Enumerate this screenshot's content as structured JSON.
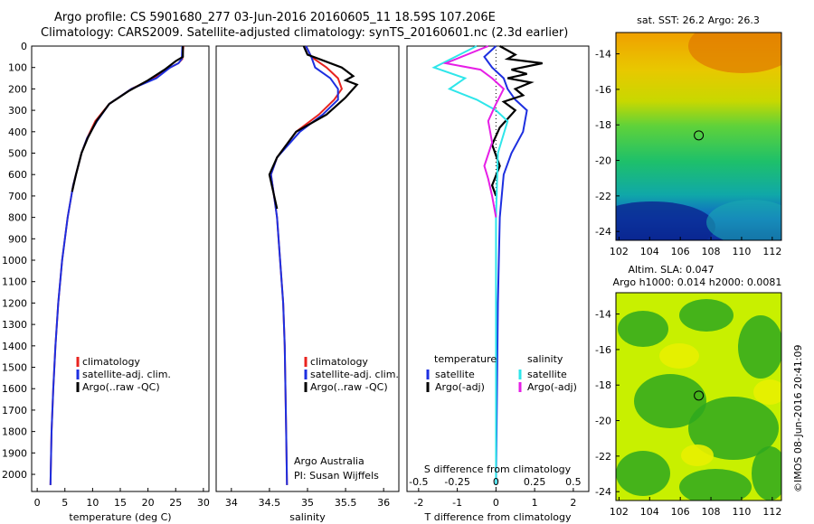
{
  "title": {
    "line1": "Argo profile: CS 5901680_277 03-Jun-2016 20160605_11 18.59S 107.206E",
    "line2": "Climatology: CARS2009. Satellite-adjusted climatology: synTS_20160601.nc (2.3d earlier)"
  },
  "stamp": "©IMOS 08-Jun-2016 20:41:09",
  "colors": {
    "climatology": "#e8231f",
    "satellite": "#1d2fe0",
    "argo": "#000000",
    "satellite_s": "#2ee6ea",
    "argo_s": "#e61ee6"
  },
  "chart_data": [
    {
      "type": "line",
      "xlabel": "temperature (deg C)",
      "ylabel": "",
      "xlim": [
        -1,
        31
      ],
      "ylim": [
        2080,
        0
      ],
      "xticks": [
        0,
        5,
        10,
        15,
        20,
        25,
        30
      ],
      "yticks": [
        0,
        100,
        200,
        300,
        400,
        500,
        600,
        700,
        800,
        900,
        1000,
        1100,
        1200,
        1300,
        1400,
        1500,
        1600,
        1700,
        1800,
        1900,
        2000
      ],
      "legend": [
        "climatology",
        "satellite-adj. clim.",
        "Argo(..raw -QC)"
      ],
      "legend_placement": "lower-center",
      "series": [
        {
          "name": "climatology",
          "color": "#e8231f",
          "x": [
            26.4,
            26.2,
            25.5,
            24.0,
            21.0,
            17.0,
            13.0,
            10.5,
            9.0,
            8.0,
            6.5,
            5.5,
            4.5,
            3.8,
            3.3,
            2.9,
            2.6,
            2.4
          ],
          "y": [
            0,
            60,
            80,
            100,
            150,
            200,
            270,
            350,
            430,
            500,
            650,
            800,
            1000,
            1200,
            1400,
            1600,
            1800,
            2050
          ]
        },
        {
          "name": "satellite-adj. clim.",
          "color": "#1d2fe0",
          "x": [
            26.2,
            26.1,
            25.5,
            24.0,
            21.5,
            17.0,
            13.0,
            10.8,
            9.0,
            8.0,
            6.5,
            5.5,
            4.5,
            3.8,
            3.3,
            2.9,
            2.6,
            2.4
          ],
          "y": [
            0,
            60,
            80,
            100,
            150,
            200,
            270,
            350,
            430,
            500,
            650,
            800,
            1000,
            1200,
            1400,
            1600,
            1800,
            2050
          ]
        },
        {
          "name": "Argo(..raw -QC)",
          "color": "#000000",
          "x": [
            26.3,
            26.3,
            25.0,
            23.0,
            20.0,
            16.5,
            13.0,
            10.7,
            9.1,
            8.0,
            7.0,
            6.3
          ],
          "y": [
            0,
            50,
            70,
            110,
            160,
            210,
            270,
            350,
            430,
            500,
            600,
            680
          ]
        }
      ]
    },
    {
      "type": "line",
      "xlabel": "salinity",
      "ylabel": "",
      "xlim": [
        33.8,
        36.2
      ],
      "ylim": [
        2080,
        0
      ],
      "xticks": [
        34,
        34.5,
        35,
        35.5,
        36
      ],
      "legend": [
        "climatology",
        "satellite-adj. clim.",
        "Argo(..raw -QC)"
      ],
      "legend_placement": "lower-center",
      "annotation": {
        "line1": "Argo Australia",
        "line2": "PI: Susan Wijffels"
      },
      "series": [
        {
          "name": "climatology",
          "color": "#e8231f",
          "x": [
            34.98,
            35.05,
            35.25,
            35.4,
            35.45,
            35.35,
            35.15,
            34.85,
            34.6,
            34.52,
            34.56,
            34.6,
            34.64,
            34.68,
            34.7,
            34.71,
            34.72,
            34.73
          ],
          "y": [
            0,
            50,
            100,
            150,
            200,
            250,
            320,
            400,
            520,
            600,
            700,
            800,
            1000,
            1200,
            1400,
            1600,
            1800,
            2050
          ]
        },
        {
          "name": "satellite-adj. clim.",
          "color": "#1d2fe0",
          "x": [
            34.98,
            35.05,
            35.1,
            35.3,
            35.4,
            35.4,
            35.2,
            34.9,
            34.6,
            34.52,
            34.56,
            34.6,
            34.64,
            34.68,
            34.7,
            34.71,
            34.72,
            34.73
          ],
          "y": [
            0,
            50,
            100,
            150,
            200,
            250,
            320,
            400,
            520,
            600,
            700,
            800,
            1000,
            1200,
            1400,
            1600,
            1800,
            2050
          ]
        },
        {
          "name": "Argo(..raw -QC)",
          "color": "#000000",
          "x": [
            34.95,
            35.0,
            35.15,
            35.45,
            35.6,
            35.5,
            35.65,
            35.5,
            35.25,
            34.85,
            34.6,
            34.5,
            34.55,
            34.6
          ],
          "y": [
            0,
            40,
            60,
            100,
            140,
            160,
            180,
            240,
            320,
            400,
            520,
            600,
            680,
            760
          ]
        }
      ]
    },
    {
      "type": "line",
      "xlabel": "T difference from climatology",
      "xlabel2": "S difference from climatology",
      "xlim": [
        -2.3,
        2.4
      ],
      "ylim": [
        2080,
        0
      ],
      "xticks": [
        -2,
        -1,
        0,
        1,
        2
      ],
      "xticks2_labels": [
        "-0.5",
        "-0.25",
        "0",
        "0.25",
        "0.5"
      ],
      "legend_temperature": [
        "temperature",
        "satellite",
        "Argo(-adj)"
      ],
      "legend_salinity": [
        "salinity",
        "satellite",
        "Argo(-adj)"
      ],
      "legend_placement": "lower-center",
      "series": [
        {
          "name": "satellite",
          "color": "#1d2fe0",
          "x": [
            0.0,
            -0.3,
            -0.1,
            0.2,
            0.3,
            0.5,
            0.8,
            0.7,
            0.4,
            0.2,
            0.1,
            0.05,
            0.0
          ],
          "y": [
            0,
            50,
            100,
            150,
            200,
            250,
            300,
            400,
            500,
            600,
            800,
            1200,
            2050
          ]
        },
        {
          "name": "Argo(-adj)",
          "color": "#000000",
          "x": [
            0.1,
            0.5,
            0.3,
            1.2,
            0.4,
            0.8,
            0.3,
            0.9,
            0.5,
            0.7,
            0.2,
            0.5,
            0.1,
            -0.1,
            0.1,
            -0.1,
            0.0
          ],
          "y": [
            0,
            40,
            60,
            80,
            110,
            130,
            150,
            170,
            200,
            230,
            260,
            300,
            380,
            460,
            560,
            650,
            700
          ]
        },
        {
          "name": "satellite",
          "color": "#2ee6ea",
          "x": [
            -0.5,
            -1.6,
            -0.8,
            -1.2,
            -0.5,
            0.0,
            0.3,
            0.05,
            0.0,
            0.0
          ],
          "y": [
            0,
            100,
            150,
            200,
            250,
            300,
            350,
            500,
            800,
            2050
          ]
        },
        {
          "name": "Argo(-adj)",
          "color": "#e61ee6",
          "x": [
            -0.2,
            -1.3,
            -0.4,
            -0.1,
            0.2,
            0.0,
            -0.2,
            -0.1,
            -0.3,
            -0.2,
            -0.1,
            0.0
          ],
          "y": [
            0,
            80,
            110,
            150,
            200,
            270,
            350,
            450,
            560,
            620,
            700,
            800
          ]
        }
      ]
    },
    {
      "type": "heatmap",
      "title": "sat. SST: 26.2 Argo: 26.3",
      "xlim": [
        101.8,
        112.6
      ],
      "ylim": [
        -24.5,
        -12.8
      ],
      "xticks": [
        102,
        104,
        106,
        108,
        110,
        112
      ],
      "yticks": [
        -14,
        -16,
        -18,
        -20,
        -22,
        -24
      ],
      "marker": {
        "x": 107.206,
        "y": -18.59
      }
    },
    {
      "type": "heatmap",
      "title": "Altim. SLA: 0.047",
      "subtitle": "Argo h1000: 0.014 h2000: 0.0081",
      "xlim": [
        101.8,
        112.6
      ],
      "ylim": [
        -24.5,
        -12.8
      ],
      "xticks": [
        102,
        104,
        106,
        108,
        110,
        112
      ],
      "yticks": [
        -14,
        -16,
        -18,
        -20,
        -22,
        -24
      ],
      "marker": {
        "x": 107.206,
        "y": -18.59
      }
    }
  ]
}
